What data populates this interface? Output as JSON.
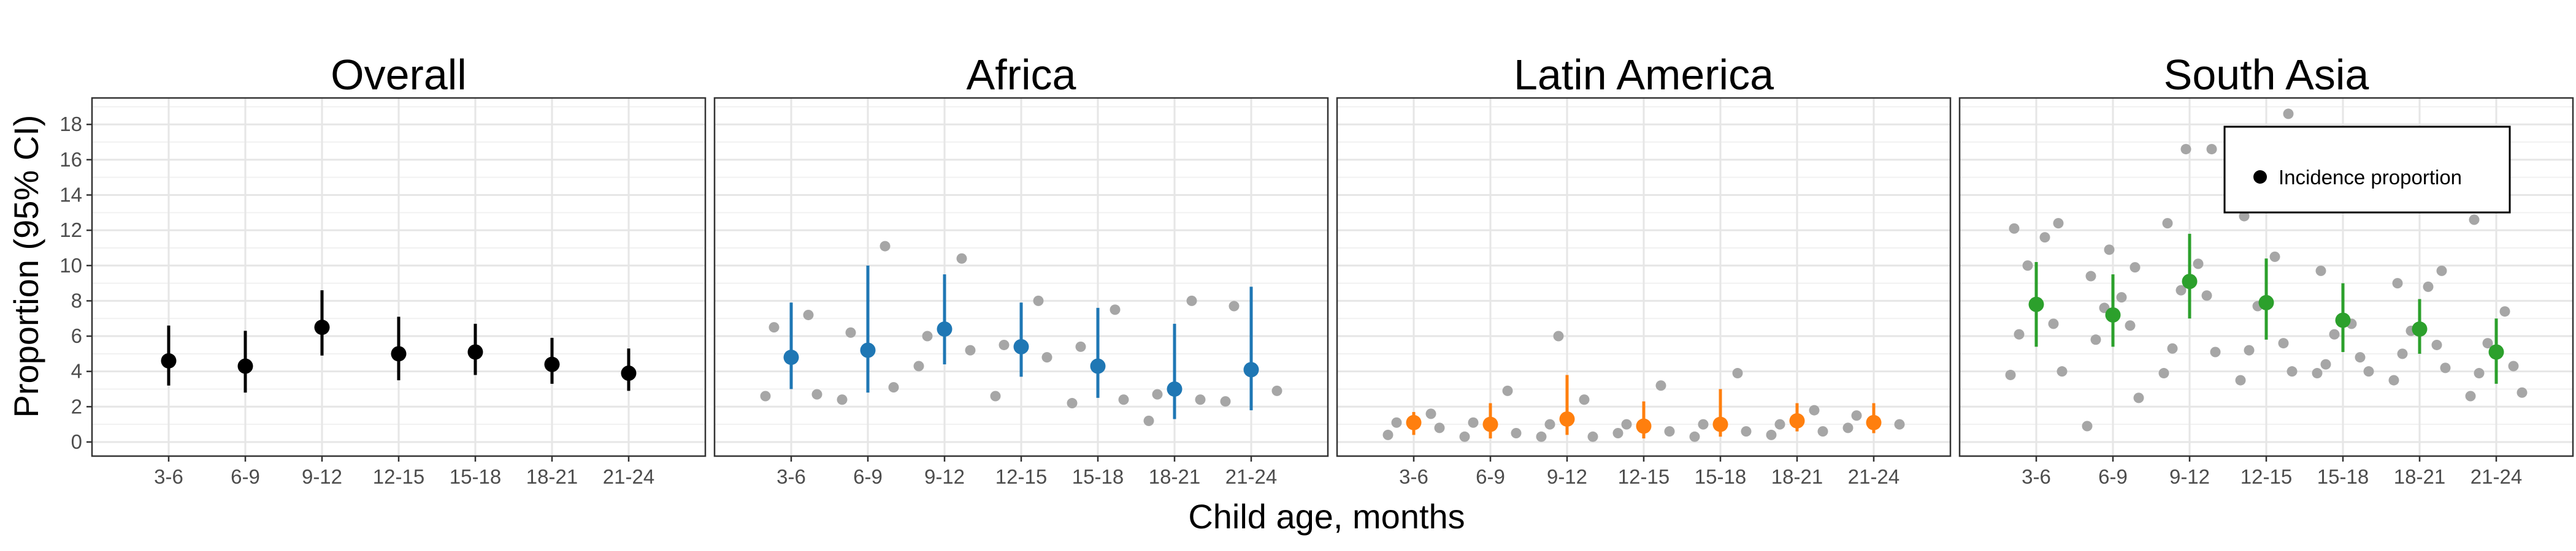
{
  "figure": {
    "ylabel": "Proportion (95% CI)",
    "xlabel": "Child age, months",
    "legend": {
      "label": "Incidence proportion",
      "placement": "top-right",
      "panel": 3
    }
  },
  "chart_data": {
    "type": "scatter",
    "categories": [
      "3-6",
      "6-9",
      "9-12",
      "12-15",
      "15-18",
      "18-21",
      "21-24"
    ],
    "xlabel": "Child age, months",
    "ylabel": "Proportion (95% CI)",
    "ylim": [
      -0.8,
      19.5
    ],
    "yticks": [
      0,
      2,
      4,
      6,
      8,
      10,
      12,
      14,
      16,
      18
    ],
    "grid": true,
    "panels": [
      {
        "title": "Overall",
        "color": "#000000",
        "estimate": [
          4.6,
          4.3,
          6.5,
          5.0,
          5.1,
          4.4,
          3.9
        ],
        "ci_lower": [
          3.2,
          2.8,
          4.9,
          3.5,
          3.8,
          3.3,
          2.9
        ],
        "ci_upper": [
          6.6,
          6.3,
          8.6,
          7.1,
          6.7,
          5.9,
          5.3
        ],
        "studies": []
      },
      {
        "title": "Africa",
        "color": "#1f77b4",
        "estimate": [
          4.8,
          5.2,
          6.4,
          5.4,
          4.3,
          3.0,
          4.1
        ],
        "ci_lower": [
          3.0,
          2.8,
          4.4,
          3.7,
          2.5,
          1.3,
          1.8
        ],
        "ci_upper": [
          7.9,
          10.0,
          9.5,
          7.9,
          7.6,
          6.7,
          8.8
        ],
        "studies": [
          [
            2.6,
            2.7,
            6.5,
            7.2
          ],
          [
            2.4,
            3.1,
            6.2,
            11.1
          ],
          [
            4.3,
            5.2,
            6.0,
            10.4
          ],
          [
            2.6,
            4.8,
            5.5,
            8.0
          ],
          [
            2.2,
            2.4,
            5.4,
            7.5
          ],
          [
            1.2,
            2.4,
            2.7,
            8.0
          ],
          [
            2.3,
            2.9,
            7.7
          ]
        ]
      },
      {
        "title": "Latin America",
        "color": "#ff7f0e",
        "estimate": [
          1.1,
          1.0,
          1.3,
          0.9,
          1.0,
          1.2,
          1.1
        ],
        "ci_lower": [
          0.4,
          0.2,
          0.4,
          0.2,
          0.3,
          0.6,
          0.5
        ],
        "ci_upper": [
          1.7,
          2.2,
          3.8,
          2.3,
          3.0,
          2.2,
          2.2
        ],
        "studies": [
          [
            0.4,
            0.8,
            1.1,
            1.6
          ],
          [
            0.3,
            0.5,
            1.1,
            2.9
          ],
          [
            0.3,
            0.3,
            1.0,
            2.4,
            6.0
          ],
          [
            0.5,
            0.6,
            1.0,
            3.2
          ],
          [
            0.3,
            0.6,
            1.0,
            3.9
          ],
          [
            0.4,
            0.6,
            1.0,
            1.8
          ],
          [
            0.8,
            1.0,
            1.5
          ]
        ]
      },
      {
        "title": "South Asia",
        "color": "#2ca02c",
        "estimate": [
          7.8,
          7.2,
          9.1,
          7.9,
          6.9,
          6.4,
          5.1
        ],
        "ci_lower": [
          5.4,
          5.4,
          7.0,
          5.8,
          5.1,
          5.0,
          3.3
        ],
        "ci_upper": [
          10.2,
          9.5,
          11.8,
          10.4,
          9.0,
          8.1,
          7.0
        ],
        "studies": [
          [
            3.8,
            4.0,
            6.1,
            6.7,
            10.0,
            11.6,
            12.1,
            12.4
          ],
          [
            0.9,
            2.5,
            5.8,
            6.6,
            7.6,
            8.2,
            9.4,
            9.9,
            10.9
          ],
          [
            3.9,
            5.1,
            5.3,
            8.3,
            8.6,
            10.1,
            12.4,
            16.6,
            16.6
          ],
          [
            3.5,
            4.0,
            5.2,
            5.6,
            7.7,
            10.5,
            12.8,
            18.6
          ],
          [
            3.9,
            4.0,
            4.4,
            4.8,
            6.1,
            6.7,
            9.7
          ],
          [
            3.5,
            4.2,
            5.0,
            5.5,
            6.3,
            8.8,
            9.0,
            9.7
          ],
          [
            2.6,
            2.8,
            3.9,
            4.3,
            5.6,
            7.4,
            12.6
          ]
        ]
      }
    ]
  }
}
